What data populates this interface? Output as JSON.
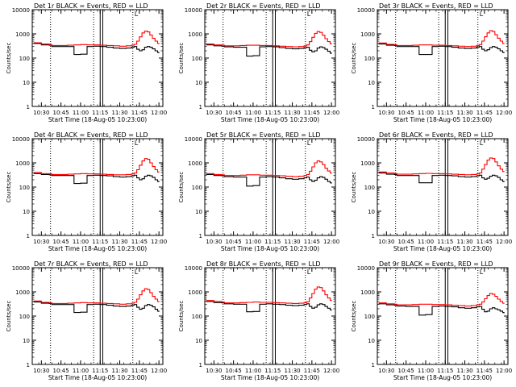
{
  "figure": {
    "x_tick_labels": [
      "10:30",
      "10:45",
      "11:00",
      "11:15",
      "11:30",
      "11:45",
      "12:00"
    ],
    "y_tick_labels": [
      "1",
      "10",
      "100",
      "1000",
      "10000"
    ]
  },
  "colors": {
    "events": "#000000",
    "lld": "#ff0000"
  },
  "chart_data": [
    {
      "type": "line",
      "title": "Det 1r BLACK = Events, RED = LLD",
      "xlabel": "Start Time (18-Aug-05 10:23:00)",
      "ylabel": "Counts/sec",
      "xlim": [
        "10:23",
        "12:03"
      ],
      "ylim": [
        1,
        10000
      ],
      "yscale": "log",
      "grid": false,
      "x": [
        "10:24",
        "10:30",
        "10:36",
        "10:38",
        "10:45",
        "10:50",
        "10:55",
        "11:00",
        "11:05",
        "11:10",
        "11:15",
        "11:20",
        "11:25",
        "11:30",
        "11:35",
        "11:39",
        "11:41",
        "11:43",
        "11:45",
        "11:47",
        "11:49",
        "11:51",
        "11:53",
        "11:55",
        "11:57",
        "11:59",
        "12:00"
      ],
      "series": [
        {
          "name": "BLACK = Events",
          "values": [
            400,
            350,
            340,
            300,
            300,
            300,
            140,
            145,
            300,
            310,
            300,
            280,
            260,
            250,
            260,
            280,
            300,
            230,
            200,
            220,
            280,
            300,
            280,
            240,
            200,
            170,
            160
          ]
        },
        {
          "name": "RED = LLD",
          "values": [
            430,
            380,
            360,
            330,
            330,
            340,
            350,
            360,
            350,
            350,
            340,
            330,
            320,
            310,
            320,
            340,
            370,
            500,
            750,
            1100,
            1300,
            1200,
            900,
            650,
            500,
            400,
            380
          ]
        }
      ],
      "vertical_lines": {
        "dotted": [
          "10:37",
          "11:10",
          "11:40"
        ],
        "solid": [
          "11:15",
          "11:17"
        ]
      },
      "annotations": [
        "L"
      ]
    },
    {
      "type": "line",
      "title": "Det 2r BLACK = Events, RED = LLD",
      "xlabel": "Start Time (18-Aug-05 10:23:00)",
      "ylabel": "Counts/sec",
      "xlim": [
        "10:23",
        "12:03"
      ],
      "ylim": [
        1,
        10000
      ],
      "yscale": "log",
      "grid": false,
      "x": [
        "10:24",
        "10:30",
        "10:36",
        "10:38",
        "10:45",
        "10:50",
        "10:55",
        "11:00",
        "11:05",
        "11:10",
        "11:15",
        "11:20",
        "11:25",
        "11:30",
        "11:35",
        "11:39",
        "11:41",
        "11:43",
        "11:45",
        "11:47",
        "11:49",
        "11:51",
        "11:53",
        "11:55",
        "11:57",
        "11:59",
        "12:00"
      ],
      "series": [
        {
          "name": "BLACK = Events",
          "values": [
            350,
            320,
            310,
            290,
            280,
            280,
            120,
            125,
            290,
            300,
            290,
            270,
            250,
            240,
            250,
            270,
            280,
            210,
            180,
            200,
            260,
            290,
            270,
            230,
            190,
            160,
            150
          ]
        },
        {
          "name": "RED = LLD",
          "values": [
            380,
            350,
            340,
            320,
            320,
            330,
            340,
            340,
            330,
            330,
            320,
            310,
            300,
            290,
            300,
            320,
            350,
            480,
            720,
            1050,
            1250,
            1150,
            880,
            630,
            480,
            390,
            370
          ]
        }
      ],
      "vertical_lines": {
        "dotted": [
          "10:37",
          "11:10",
          "11:40"
        ],
        "solid": [
          "11:15",
          "11:17"
        ]
      },
      "annotations": [
        "L"
      ]
    },
    {
      "type": "line",
      "title": "Det 3r BLACK = Events, RED = LLD",
      "xlabel": "Start Time (18-Aug-05 10:23:00)",
      "ylabel": "Counts/sec",
      "xlim": [
        "10:23",
        "12:03"
      ],
      "ylim": [
        1,
        10000
      ],
      "yscale": "log",
      "grid": false,
      "x": [
        "10:24",
        "10:30",
        "10:36",
        "10:38",
        "10:45",
        "10:50",
        "10:55",
        "11:00",
        "11:05",
        "11:10",
        "11:15",
        "11:20",
        "11:25",
        "11:30",
        "11:35",
        "11:39",
        "11:41",
        "11:43",
        "11:45",
        "11:47",
        "11:49",
        "11:51",
        "11:53",
        "11:55",
        "11:57",
        "11:59",
        "12:00"
      ],
      "series": [
        {
          "name": "BLACK = Events",
          "values": [
            380,
            340,
            330,
            300,
            300,
            300,
            140,
            140,
            300,
            310,
            300,
            280,
            260,
            250,
            260,
            280,
            300,
            230,
            200,
            220,
            270,
            300,
            280,
            240,
            200,
            170,
            160
          ]
        },
        {
          "name": "RED = LLD",
          "values": [
            420,
            370,
            350,
            330,
            330,
            340,
            350,
            350,
            340,
            340,
            330,
            320,
            310,
            300,
            310,
            330,
            360,
            500,
            760,
            1100,
            1350,
            1250,
            920,
            660,
            500,
            400,
            380
          ]
        }
      ],
      "vertical_lines": {
        "dotted": [
          "10:37",
          "11:10",
          "11:40"
        ],
        "solid": [
          "11:15",
          "11:17"
        ]
      },
      "annotations": [
        "L"
      ]
    },
    {
      "type": "line",
      "title": "Det 4r BLACK = Events, RED = LLD",
      "xlabel": "Start Time (18-Aug-05 10:23:00)",
      "ylabel": "Counts/sec",
      "xlim": [
        "10:23",
        "12:03"
      ],
      "ylim": [
        1,
        10000
      ],
      "yscale": "log",
      "grid": false,
      "x": [
        "10:24",
        "10:30",
        "10:36",
        "10:38",
        "10:45",
        "10:50",
        "10:55",
        "11:00",
        "11:05",
        "11:10",
        "11:15",
        "11:20",
        "11:25",
        "11:30",
        "11:35",
        "11:39",
        "11:41",
        "11:43",
        "11:45",
        "11:47",
        "11:49",
        "11:51",
        "11:53",
        "11:55",
        "11:57",
        "11:59",
        "12:00"
      ],
      "series": [
        {
          "name": "BLACK = Events",
          "values": [
            360,
            330,
            320,
            300,
            300,
            300,
            140,
            145,
            300,
            310,
            300,
            290,
            270,
            260,
            270,
            290,
            310,
            240,
            200,
            220,
            280,
            310,
            290,
            250,
            200,
            170,
            160
          ]
        },
        {
          "name": "RED = LLD",
          "values": [
            400,
            360,
            350,
            330,
            330,
            340,
            350,
            360,
            350,
            350,
            340,
            330,
            320,
            320,
            330,
            350,
            380,
            520,
            800,
            1200,
            1500,
            1400,
            1000,
            700,
            520,
            420,
            400
          ]
        }
      ],
      "vertical_lines": {
        "dotted": [
          "10:37",
          "11:10",
          "11:40"
        ],
        "solid": [
          "11:15",
          "11:17"
        ]
      },
      "annotations": [
        "L"
      ]
    },
    {
      "type": "line",
      "title": "Det 5r BLACK = Events, RED = LLD",
      "xlabel": "Start Time (18-Aug-05 10:23:00)",
      "ylabel": "Counts/sec",
      "xlim": [
        "10:23",
        "12:03"
      ],
      "ylim": [
        1,
        10000
      ],
      "yscale": "log",
      "grid": false,
      "x": [
        "10:24",
        "10:30",
        "10:36",
        "10:38",
        "10:45",
        "10:50",
        "10:55",
        "11:00",
        "11:05",
        "11:10",
        "11:15",
        "11:20",
        "11:25",
        "11:30",
        "11:35",
        "11:39",
        "11:41",
        "11:43",
        "11:45",
        "11:47",
        "11:49",
        "11:51",
        "11:53",
        "11:55",
        "11:57",
        "11:59",
        "12:00"
      ],
      "series": [
        {
          "name": "BLACK = Events",
          "values": [
            330,
            300,
            290,
            270,
            260,
            260,
            110,
            115,
            260,
            270,
            260,
            240,
            220,
            210,
            220,
            240,
            260,
            200,
            170,
            190,
            240,
            270,
            250,
            210,
            170,
            150,
            140
          ]
        },
        {
          "name": "RED = LLD",
          "values": [
            360,
            330,
            320,
            300,
            300,
            310,
            320,
            320,
            310,
            310,
            300,
            290,
            280,
            270,
            280,
            300,
            330,
            450,
            680,
            1000,
            1200,
            1100,
            850,
            600,
            460,
            380,
            360
          ]
        }
      ],
      "vertical_lines": {
        "dotted": [
          "10:37",
          "11:10",
          "11:40"
        ],
        "solid": [
          "11:15",
          "11:17"
        ]
      },
      "annotations": [
        "L"
      ]
    },
    {
      "type": "line",
      "title": "Det 6r BLACK = Events, RED = LLD",
      "xlabel": "Start Time (18-Aug-05 10:23:00)",
      "ylabel": "Counts/sec",
      "xlim": [
        "10:23",
        "12:03"
      ],
      "ylim": [
        1,
        10000
      ],
      "yscale": "log",
      "grid": false,
      "x": [
        "10:24",
        "10:30",
        "10:36",
        "10:38",
        "10:45",
        "10:50",
        "10:55",
        "11:00",
        "11:05",
        "11:10",
        "11:15",
        "11:20",
        "11:25",
        "11:30",
        "11:35",
        "11:39",
        "11:41",
        "11:43",
        "11:45",
        "11:47",
        "11:49",
        "11:51",
        "11:53",
        "11:55",
        "11:57",
        "11:59",
        "12:00"
      ],
      "series": [
        {
          "name": "BLACK = Events",
          "values": [
            380,
            340,
            330,
            300,
            300,
            300,
            150,
            150,
            300,
            310,
            300,
            290,
            270,
            260,
            270,
            290,
            310,
            240,
            210,
            230,
            280,
            310,
            290,
            250,
            200,
            170,
            160
          ]
        },
        {
          "name": "RED = LLD",
          "values": [
            420,
            380,
            360,
            340,
            340,
            350,
            360,
            370,
            360,
            360,
            350,
            340,
            330,
            320,
            330,
            350,
            380,
            550,
            850,
            1300,
            1600,
            1500,
            1100,
            750,
            550,
            440,
            420
          ]
        }
      ],
      "vertical_lines": {
        "dotted": [
          "10:37",
          "11:10",
          "11:40"
        ],
        "solid": [
          "11:15",
          "11:17"
        ]
      },
      "annotations": [
        "L"
      ]
    },
    {
      "type": "line",
      "title": "Det 7r BLACK = Events, RED = LLD",
      "xlabel": "Start Time (18-Aug-05 10:23:00)",
      "ylabel": "Counts/sec",
      "xlim": [
        "10:23",
        "12:03"
      ],
      "ylim": [
        1,
        10000
      ],
      "yscale": "log",
      "grid": false,
      "x": [
        "10:24",
        "10:30",
        "10:36",
        "10:38",
        "10:45",
        "10:50",
        "10:55",
        "11:00",
        "11:05",
        "11:10",
        "11:15",
        "11:20",
        "11:25",
        "11:30",
        "11:35",
        "11:39",
        "11:41",
        "11:43",
        "11:45",
        "11:47",
        "11:49",
        "11:51",
        "11:53",
        "11:55",
        "11:57",
        "11:59",
        "12:00"
      ],
      "series": [
        {
          "name": "BLACK = Events",
          "values": [
            380,
            340,
            330,
            300,
            300,
            300,
            140,
            145,
            300,
            310,
            300,
            280,
            260,
            250,
            260,
            280,
            300,
            230,
            190,
            210,
            270,
            300,
            280,
            240,
            190,
            160,
            150
          ]
        },
        {
          "name": "RED = LLD",
          "values": [
            420,
            370,
            350,
            330,
            330,
            340,
            350,
            360,
            350,
            350,
            340,
            330,
            320,
            310,
            320,
            340,
            370,
            500,
            760,
            1100,
            1350,
            1250,
            920,
            650,
            500,
            400,
            380
          ]
        }
      ],
      "vertical_lines": {
        "dotted": [
          "10:37",
          "11:10",
          "11:40"
        ],
        "solid": [
          "11:15",
          "11:17"
        ]
      },
      "annotations": [
        "L"
      ]
    },
    {
      "type": "line",
      "title": "Det 8r BLACK = Events, RED = LLD",
      "xlabel": "Start Time (18-Aug-05 10:23:00)",
      "ylabel": "Counts/sec",
      "xlim": [
        "10:23",
        "12:03"
      ],
      "ylim": [
        1,
        10000
      ],
      "yscale": "log",
      "grid": false,
      "x": [
        "10:24",
        "10:30",
        "10:36",
        "10:38",
        "10:45",
        "10:50",
        "10:55",
        "11:00",
        "11:05",
        "11:10",
        "11:15",
        "11:20",
        "11:25",
        "11:30",
        "11:35",
        "11:39",
        "11:41",
        "11:43",
        "11:45",
        "11:47",
        "11:49",
        "11:51",
        "11:53",
        "11:55",
        "11:57",
        "11:59",
        "12:00"
      ],
      "series": [
        {
          "name": "BLACK = Events",
          "values": [
            400,
            360,
            350,
            320,
            310,
            310,
            150,
            155,
            310,
            320,
            310,
            300,
            280,
            270,
            280,
            300,
            320,
            250,
            210,
            230,
            290,
            320,
            300,
            250,
            210,
            180,
            170
          ]
        },
        {
          "name": "RED = LLD",
          "values": [
            440,
            400,
            380,
            350,
            350,
            360,
            370,
            380,
            370,
            370,
            360,
            350,
            340,
            330,
            340,
            360,
            390,
            560,
            860,
            1300,
            1600,
            1500,
            1100,
            760,
            560,
            450,
            420
          ]
        }
      ],
      "vertical_lines": {
        "dotted": [
          "10:37",
          "11:10",
          "11:40"
        ],
        "solid": [
          "11:15",
          "11:17"
        ]
      },
      "annotations": [
        "L"
      ]
    },
    {
      "type": "line",
      "title": "Det 9r BLACK = Events, RED = LLD",
      "xlabel": "Start Time (18-Aug-05 10:23:00)",
      "ylabel": "Counts/sec",
      "xlim": [
        "10:23",
        "12:03"
      ],
      "ylim": [
        1,
        10000
      ],
      "yscale": "log",
      "grid": false,
      "x": [
        "10:24",
        "10:30",
        "10:36",
        "10:38",
        "10:45",
        "10:50",
        "10:55",
        "11:00",
        "11:05",
        "11:10",
        "11:15",
        "11:20",
        "11:25",
        "11:30",
        "11:35",
        "11:39",
        "11:41",
        "11:43",
        "11:45",
        "11:47",
        "11:49",
        "11:51",
        "11:53",
        "11:55",
        "11:57",
        "11:59",
        "12:00"
      ],
      "series": [
        {
          "name": "BLACK = Events",
          "values": [
            320,
            290,
            280,
            260,
            250,
            250,
            110,
            115,
            250,
            260,
            250,
            240,
            220,
            210,
            220,
            240,
            250,
            190,
            150,
            160,
            200,
            220,
            200,
            180,
            160,
            140,
            130
          ]
        },
        {
          "name": "RED = LLD",
          "values": [
            350,
            320,
            310,
            290,
            290,
            300,
            310,
            310,
            300,
            300,
            290,
            280,
            270,
            260,
            270,
            290,
            310,
            380,
            520,
            700,
            850,
            800,
            650,
            500,
            400,
            340,
            320
          ]
        }
      ],
      "vertical_lines": {
        "dotted": [
          "10:37",
          "11:10",
          "11:40"
        ],
        "solid": [
          "11:15",
          "11:17"
        ]
      },
      "annotations": [
        "L"
      ]
    }
  ]
}
